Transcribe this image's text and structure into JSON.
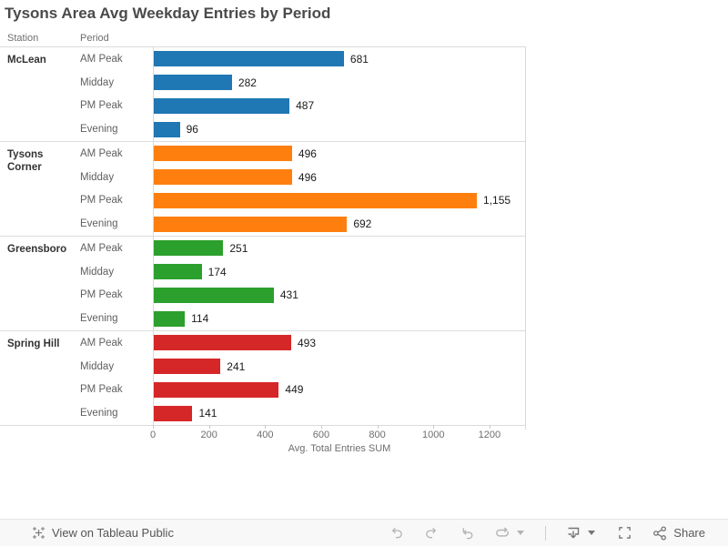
{
  "headers": {
    "station": "Station",
    "period": "Period"
  },
  "chart_data": {
    "type": "bar",
    "orientation": "horizontal",
    "title": "Tysons Area Avg Weekday Entries by Period",
    "xlabel": "Avg. Total Entries SUM",
    "x_ticks": [
      0,
      200,
      400,
      600,
      800,
      1000,
      1200
    ],
    "x_max": 1330,
    "grid": false,
    "legend": false,
    "groups": [
      {
        "station": "McLean",
        "color": "#1f77b4",
        "bars": [
          {
            "period": "AM Peak",
            "value": 681,
            "label": "681"
          },
          {
            "period": "Midday",
            "value": 282,
            "label": "282"
          },
          {
            "period": "PM Peak",
            "value": 487,
            "label": "487"
          },
          {
            "period": "Evening",
            "value": 96,
            "label": "96"
          }
        ]
      },
      {
        "station": "Tysons Corner",
        "color": "#ff7f0e",
        "bars": [
          {
            "period": "AM Peak",
            "value": 496,
            "label": "496"
          },
          {
            "period": "Midday",
            "value": 496,
            "label": "496"
          },
          {
            "period": "PM Peak",
            "value": 1155,
            "label": "1,155"
          },
          {
            "period": "Evening",
            "value": 692,
            "label": "692"
          }
        ]
      },
      {
        "station": "Greensboro",
        "color": "#2ca02c",
        "bars": [
          {
            "period": "AM Peak",
            "value": 251,
            "label": "251"
          },
          {
            "period": "Midday",
            "value": 174,
            "label": "174"
          },
          {
            "period": "PM Peak",
            "value": 431,
            "label": "431"
          },
          {
            "period": "Evening",
            "value": 114,
            "label": "114"
          }
        ]
      },
      {
        "station": "Spring Hill",
        "color": "#d62728",
        "bars": [
          {
            "period": "AM Peak",
            "value": 493,
            "label": "493"
          },
          {
            "period": "Midday",
            "value": 241,
            "label": "241"
          },
          {
            "period": "PM Peak",
            "value": 449,
            "label": "449"
          },
          {
            "period": "Evening",
            "value": 141,
            "label": "141"
          }
        ]
      }
    ]
  },
  "toolbar": {
    "view_link": "View on Tableau Public",
    "share_label": "Share",
    "icon_colors": {
      "disabled": "#b3b3b3",
      "active": "#757575"
    }
  }
}
